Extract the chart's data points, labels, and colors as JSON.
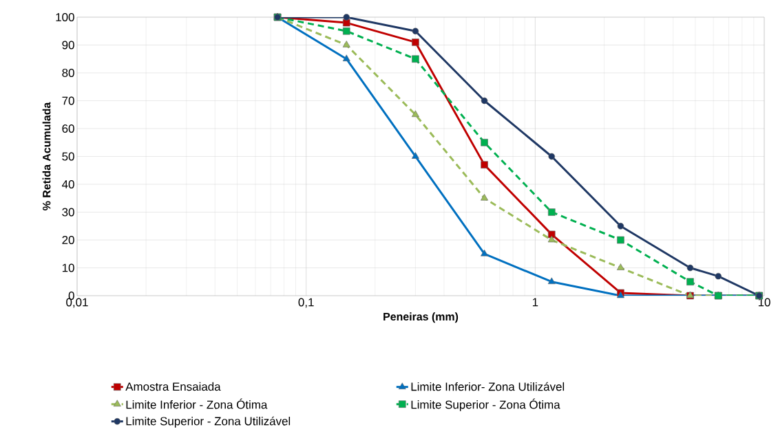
{
  "chart_data": {
    "type": "line",
    "xlabel": "Peneiras (mm)",
    "ylabel": "% Retida Acumulada",
    "x": [
      0.075,
      0.15,
      0.3,
      0.6,
      1.18,
      2.36,
      4.75,
      6.3,
      9.5
    ],
    "series": [
      {
        "name": "Amostra Ensaiada",
        "color": "#c00000",
        "marker": "square",
        "line_style": "solid",
        "values": [
          100,
          98,
          91,
          47,
          22,
          1,
          0,
          0,
          0
        ]
      },
      {
        "name": "Limite Inferior-  Zona Utilizável",
        "color": "#0070c0",
        "marker": "triangle",
        "line_style": "solid",
        "values": [
          100,
          85,
          50,
          15,
          5,
          0,
          0,
          0,
          0
        ]
      },
      {
        "name": "Limite Inferior - Zona Ótima",
        "color": "#9bbb59",
        "marker": "triangle",
        "line_style": "dashed",
        "values": [
          100,
          90,
          65,
          35,
          20,
          10,
          0,
          0,
          0
        ]
      },
      {
        "name": "Limite Superior - Zona Ótima",
        "color": "#00b050",
        "marker": "square",
        "line_style": "dashed",
        "values": [
          100,
          95,
          85,
          55,
          30,
          20,
          5,
          0,
          0
        ]
      },
      {
        "name": "Limite Superior - Zona Utilizável",
        "color": "#1f3864",
        "marker": "circle",
        "line_style": "solid",
        "values": [
          100,
          100,
          95,
          70,
          50,
          25,
          10,
          7,
          0
        ]
      }
    ],
    "log": "x",
    "xlim": [
      0.01,
      10
    ],
    "xticks": [
      {
        "value": 0.01,
        "label": "0,01"
      },
      {
        "value": 0.1,
        "label": "0,1"
      },
      1,
      10
    ],
    "ylim": [
      0,
      100
    ],
    "yticks": [
      0,
      10,
      20,
      30,
      40,
      50,
      60,
      70,
      80,
      90,
      100
    ],
    "grid": true,
    "legend": "bottom"
  }
}
